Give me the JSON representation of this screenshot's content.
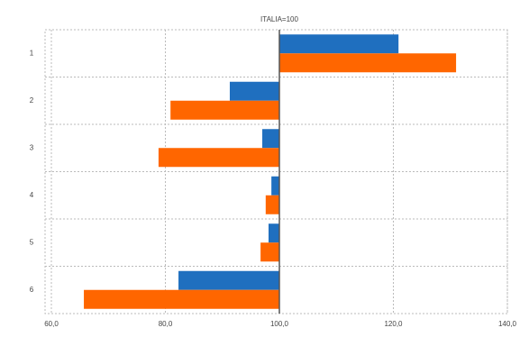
{
  "chart_data": {
    "type": "hbar",
    "title": "ITALIA=100",
    "categories": [
      "1",
      "2",
      "3",
      "4",
      "5",
      "6"
    ],
    "series": [
      {
        "color": "#1f6fbf",
        "values": [
          120.9,
          91.3,
          97.0,
          98.6,
          98.1,
          82.3
        ]
      },
      {
        "color": "#ff6600",
        "values": [
          131.0,
          80.9,
          78.8,
          97.6,
          96.7,
          65.7
        ]
      }
    ],
    "baseline": 100,
    "xlim": [
      60,
      140
    ],
    "xticks": [
      {
        "value": 60,
        "label": "60,0"
      },
      {
        "value": 80,
        "label": "80,0"
      },
      {
        "value": 100,
        "label": "100,0"
      },
      {
        "value": 120,
        "label": "120,0"
      },
      {
        "value": 140,
        "label": "140,0"
      }
    ],
    "grid": true
  }
}
